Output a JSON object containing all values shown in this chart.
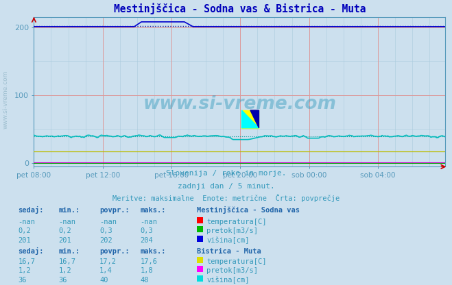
{
  "title": "Mestinjščica - Sodna vas & Bistrica - Muta",
  "bg_color": "#cce0ee",
  "plot_bg_color": "#cce0ee",
  "xlim": [
    0,
    287
  ],
  "ylim": [
    -5,
    215
  ],
  "yticks": [
    0,
    100,
    200
  ],
  "xtick_labels": [
    "pet 08:00",
    "pet 12:00",
    "pet 16:00",
    "pet 20:00",
    "sob 00:00",
    "sob 04:00"
  ],
  "xtick_positions": [
    0,
    48,
    96,
    144,
    192,
    240
  ],
  "subtitle1": "Slovenija / reke in morje.",
  "subtitle2": "zadnji dan / 5 minut.",
  "subtitle3": "Meritve: maksimalne  Enote: metrične  Črta: povprečje",
  "watermark": "www.si-vreme.com",
  "station1_name": "Mestinjščica - Sodna vas",
  "station2_name": "Bistrica - Muta",
  "legend_items": [
    {
      "label": "temperatura[C]",
      "color": "#ff0000"
    },
    {
      "label": "pretok[m3/s]",
      "color": "#00bb00"
    },
    {
      "label": "višina[cm]",
      "color": "#0000dd"
    }
  ],
  "legend_items2": [
    {
      "label": "temperatura[C]",
      "color": "#dddd00"
    },
    {
      "label": "pretok[m3/s]",
      "color": "#ff00ff"
    },
    {
      "label": "višina[cm]",
      "color": "#00dddd"
    }
  ],
  "table1_headers": [
    "sedaj:",
    "min.:",
    "povpr.:",
    "maks.:"
  ],
  "table1_rows": [
    [
      "-nan",
      "-nan",
      "-nan",
      "-nan"
    ],
    [
      "0,2",
      "0,2",
      "0,3",
      "0,3"
    ],
    [
      "201",
      "201",
      "202",
      "204"
    ]
  ],
  "table2_rows": [
    [
      "16,7",
      "16,7",
      "17,2",
      "17,6"
    ],
    [
      "1,2",
      "1,2",
      "1,4",
      "1,8"
    ],
    [
      "36",
      "36",
      "40",
      "48"
    ]
  ],
  "text_color": "#3399bb",
  "axis_color": "#5599bb",
  "title_color": "#0000bb",
  "header_color": "#2266aa"
}
